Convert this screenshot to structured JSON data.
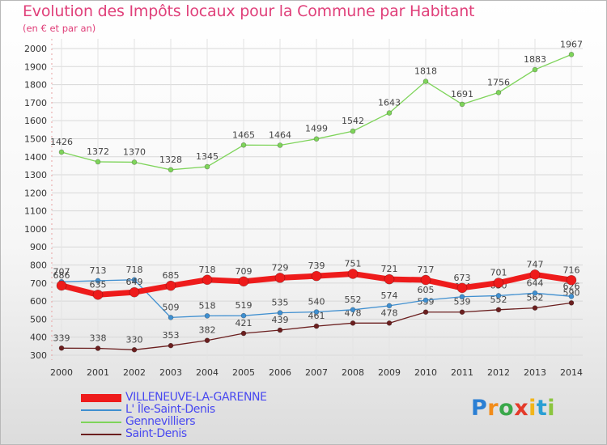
{
  "header": {
    "title": "Evolution des Impôts locaux pour la Commune par Habitant",
    "subtitle": "(en € et par an)"
  },
  "brand": {
    "logo_text": "Proxiti"
  },
  "chart_data": {
    "type": "line",
    "title": "Evolution des Impôts locaux pour la Commune par Habitant",
    "subtitle": "(en € et par an)",
    "xlabel": "",
    "ylabel": "",
    "ylim": [
      300,
      2000
    ],
    "yticks": [
      300,
      400,
      500,
      600,
      700,
      800,
      900,
      1000,
      1100,
      1200,
      1300,
      1400,
      1500,
      1600,
      1700,
      1800,
      1900,
      2000
    ],
    "grid": "horizontal",
    "legend_position": "bottom-left",
    "categories": [
      "2000",
      "2001",
      "2002",
      "2003",
      "2004",
      "2005",
      "2006",
      "2007",
      "2008",
      "2009",
      "2010",
      "2011",
      "2012",
      "2013",
      "2014"
    ],
    "series": [
      {
        "name": "Saint-Denis",
        "color": "#6b1f1f",
        "values": [
          339,
          338,
          330,
          353,
          382,
          421,
          439,
          461,
          478,
          478,
          539,
          539,
          552,
          562,
          590
        ]
      },
      {
        "name": "Gennevilliers",
        "color": "#7ed45a",
        "values": [
          1426,
          1372,
          1370,
          1328,
          1345,
          1465,
          1464,
          1499,
          1542,
          1643,
          1818,
          1691,
          1756,
          1883,
          1967
        ]
      },
      {
        "name": "L' Île-Saint-Denis",
        "color": "#3f8fd0",
        "values": [
          707,
          713,
          718,
          509,
          518,
          519,
          535,
          540,
          552,
          574,
          605,
          624,
          630,
          644,
          626
        ]
      },
      {
        "name": "VILLENEUVE-LA-GARENNE",
        "color": "#ee1b1b",
        "values": [
          686,
          635,
          649,
          685,
          718,
          709,
          729,
          739,
          751,
          721,
          717,
          673,
          701,
          747,
          716
        ]
      }
    ],
    "legend": [
      "VILLENEUVE-LA-GARENNE",
      "L' Île-Saint-Denis",
      "Gennevilliers",
      "Saint-Denis"
    ]
  }
}
